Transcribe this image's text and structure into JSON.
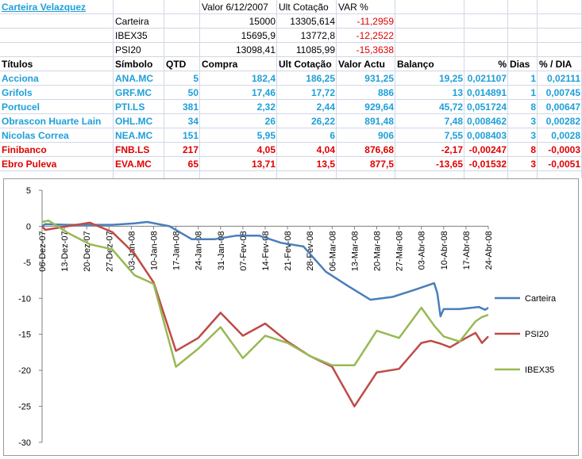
{
  "sheet": {
    "title": "Carteira Velazquez",
    "summary_headers": [
      "Valor 6/12/2007",
      "Ult Cotação",
      "VAR %"
    ],
    "summary_rows": [
      {
        "name": "Carteira",
        "valor": "15000",
        "ult": "13305,614",
        "var": "-11,2959"
      },
      {
        "name": "IBEX35",
        "valor": "15695,9",
        "ult": "13772,8",
        "var": "-12,2522"
      },
      {
        "name": "PSI20",
        "valor": "13098,41",
        "ult": "11085,99",
        "var": "-15,3638"
      }
    ],
    "table_headers": [
      "Títulos",
      "Símbolo",
      "QTD",
      "Compra",
      "Ult Cotação",
      "Valor Actu",
      "Balanço",
      "%",
      "Dias",
      "% / DIA"
    ],
    "rows": [
      {
        "titulo": "Acciona",
        "simbolo": "ANA.MC",
        "qtd": "5",
        "compra": "182,4",
        "ult": "186,25",
        "valor": "931,25",
        "balanco": "19,25",
        "pct": "0,021107",
        "dias": "1",
        "pctdia": "0,02111",
        "status": "up"
      },
      {
        "titulo": "Grifols",
        "simbolo": "GRF.MC",
        "qtd": "50",
        "compra": "17,46",
        "ult": "17,72",
        "valor": "886",
        "balanco": "13",
        "pct": "0,014891",
        "dias": "1",
        "pctdia": "0,00745",
        "status": "up"
      },
      {
        "titulo": "Portucel",
        "simbolo": "PTI.LS",
        "qtd": "381",
        "compra": "2,32",
        "ult": "2,44",
        "valor": "929,64",
        "balanco": "45,72",
        "pct": "0,051724",
        "dias": "8",
        "pctdia": "0,00647",
        "status": "up"
      },
      {
        "titulo": "Obrascon Huarte Lain",
        "simbolo": "OHL.MC",
        "qtd": "34",
        "compra": "26",
        "ult": "26,22",
        "valor": "891,48",
        "balanco": "7,48",
        "pct": "0,008462",
        "dias": "3",
        "pctdia": "0,00282",
        "status": "up"
      },
      {
        "titulo": "Nicolas Correa",
        "simbolo": "NEA.MC",
        "qtd": "151",
        "compra": "5,95",
        "ult": "6",
        "valor": "906",
        "balanco": "7,55",
        "pct": "0,008403",
        "dias": "3",
        "pctdia": "0,0028",
        "status": "up"
      },
      {
        "titulo": "Finibanco",
        "simbolo": "FNB.LS",
        "qtd": "217",
        "compra": "4,05",
        "ult": "4,04",
        "valor": "876,68",
        "balanco": "-2,17",
        "pct": "-0,00247",
        "dias": "8",
        "pctdia": "-0,0003",
        "status": "down"
      },
      {
        "titulo": "Ebro Puleva",
        "simbolo": "EVA.MC",
        "qtd": "65",
        "compra": "13,71",
        "ult": "13,5",
        "valor": "877,5",
        "balanco": "-13,65",
        "pct": "-0,01532",
        "dias": "3",
        "pctdia": "-0,0051",
        "status": "down"
      }
    ]
  },
  "colors": {
    "up": "#1e9fd8",
    "down": "#e00000",
    "carteira": "#4a7ebb",
    "psi20": "#be4b48",
    "ibex35": "#98b954",
    "gridline": "#d0d7e5"
  },
  "chart_data": {
    "type": "line",
    "ylim": [
      -30,
      5
    ],
    "yticks": [
      "5",
      "0",
      "-5",
      "-10",
      "-15",
      "-20",
      "-25",
      "-30"
    ],
    "xlim": [
      "06-Dez-07",
      "24-Abr-08"
    ],
    "categories": [
      "06-Dez-07",
      "13-Dez-07",
      "20-Dez-07",
      "27-Dez-07",
      "03-Jan-08",
      "10-Jan-08",
      "17-Jan-08",
      "24-Jan-08",
      "31-Jan-08",
      "07-Fev-08",
      "14-Fev-08",
      "21-Fev-08",
      "28-Fev-08",
      "06-Mar-08",
      "13-Mar-08",
      "20-Mar-08",
      "27-Mar-08",
      "03-Abr-08",
      "10-Abr-08",
      "17-Abr-08",
      "24-Abr-08"
    ],
    "legend": "right",
    "series": [
      {
        "name": "Carteira",
        "points": [
          [
            "06-Dez-07",
            0
          ],
          [
            "07-Dez-07",
            0.3
          ],
          [
            "14-Dez-07",
            0.2
          ],
          [
            "21-Dez-07",
            0.2
          ],
          [
            "28-Dez-07",
            0.2
          ],
          [
            "04-Jan-08",
            0.4
          ],
          [
            "08-Jan-08",
            0.6
          ],
          [
            "15-Jan-08",
            0.0
          ],
          [
            "22-Jan-08",
            -1.8
          ],
          [
            "29-Jan-08",
            -1.8
          ],
          [
            "05-Fev-08",
            -1.3
          ],
          [
            "12-Fev-08",
            -1.3
          ],
          [
            "19-Fev-08",
            -2.3
          ],
          [
            "26-Fev-08",
            -2.8
          ],
          [
            "04-Mar-08",
            -6.3
          ],
          [
            "11-Mar-08",
            -8.3
          ],
          [
            "18-Mar-08",
            -10.2
          ],
          [
            "25-Mar-08",
            -9.8
          ],
          [
            "01-Abr-08",
            -8.8
          ],
          [
            "07-Abr-08",
            -7.9
          ],
          [
            "08-Abr-08",
            -9.3
          ],
          [
            "09-Abr-08",
            -12.5
          ],
          [
            "10-Abr-08",
            -11.5
          ],
          [
            "15-Abr-08",
            -11.5
          ],
          [
            "21-Abr-08",
            -11.2
          ],
          [
            "23-Abr-08",
            -11.6
          ],
          [
            "24-Abr-08",
            -11.3
          ]
        ]
      },
      {
        "name": "PSI20",
        "points": [
          [
            "06-Dez-07",
            0
          ],
          [
            "07-Dez-07",
            -0.5
          ],
          [
            "14-Dez-07",
            0.0
          ],
          [
            "21-Dez-07",
            0.5
          ],
          [
            "28-Dez-07",
            -0.8
          ],
          [
            "04-Jan-08",
            -3.8
          ],
          [
            "10-Jan-08",
            -7.8
          ],
          [
            "17-Jan-08",
            -17.3
          ],
          [
            "24-Jan-08",
            -15.5
          ],
          [
            "31-Jan-08",
            -12.0
          ],
          [
            "07-Fev-08",
            -15.2
          ],
          [
            "14-Fev-08",
            -13.5
          ],
          [
            "21-Fev-08",
            -16.0
          ],
          [
            "28-Fev-08",
            -18.0
          ],
          [
            "06-Mar-08",
            -19.5
          ],
          [
            "13-Mar-08",
            -25.0
          ],
          [
            "20-Mar-08",
            -20.3
          ],
          [
            "27-Mar-08",
            -19.8
          ],
          [
            "03-Abr-08",
            -16.2
          ],
          [
            "06-Abr-08",
            -15.9
          ],
          [
            "09-Abr-08",
            -16.3
          ],
          [
            "12-Abr-08",
            -16.8
          ],
          [
            "17-Abr-08",
            -15.5
          ],
          [
            "20-Abr-08",
            -14.8
          ],
          [
            "22-Abr-08",
            -16.2
          ],
          [
            "24-Abr-08",
            -15.3
          ]
        ]
      },
      {
        "name": "IBEX35",
        "points": [
          [
            "06-Dez-07",
            0.6
          ],
          [
            "08-Dez-07",
            0.8
          ],
          [
            "14-Dez-07",
            -0.9
          ],
          [
            "21-Dez-07",
            -2.5
          ],
          [
            "28-Dez-07",
            -3.2
          ],
          [
            "04-Jan-08",
            -6.8
          ],
          [
            "10-Jan-08",
            -8.0
          ],
          [
            "17-Jan-08",
            -19.5
          ],
          [
            "24-Jan-08",
            -17.0
          ],
          [
            "31-Jan-08",
            -14.0
          ],
          [
            "07-Fev-08",
            -18.3
          ],
          [
            "14-Fev-08",
            -15.2
          ],
          [
            "21-Fev-08",
            -16.2
          ],
          [
            "28-Fev-08",
            -18.0
          ],
          [
            "06-Mar-08",
            -19.3
          ],
          [
            "13-Mar-08",
            -19.3
          ],
          [
            "20-Mar-08",
            -14.5
          ],
          [
            "27-Mar-08",
            -15.5
          ],
          [
            "03-Abr-08",
            -11.3
          ],
          [
            "07-Abr-08",
            -13.8
          ],
          [
            "10-Abr-08",
            -15.3
          ],
          [
            "15-Abr-08",
            -16.0
          ],
          [
            "20-Abr-08",
            -13.2
          ],
          [
            "22-Abr-08",
            -12.6
          ],
          [
            "24-Abr-08",
            -12.3
          ]
        ]
      }
    ]
  }
}
